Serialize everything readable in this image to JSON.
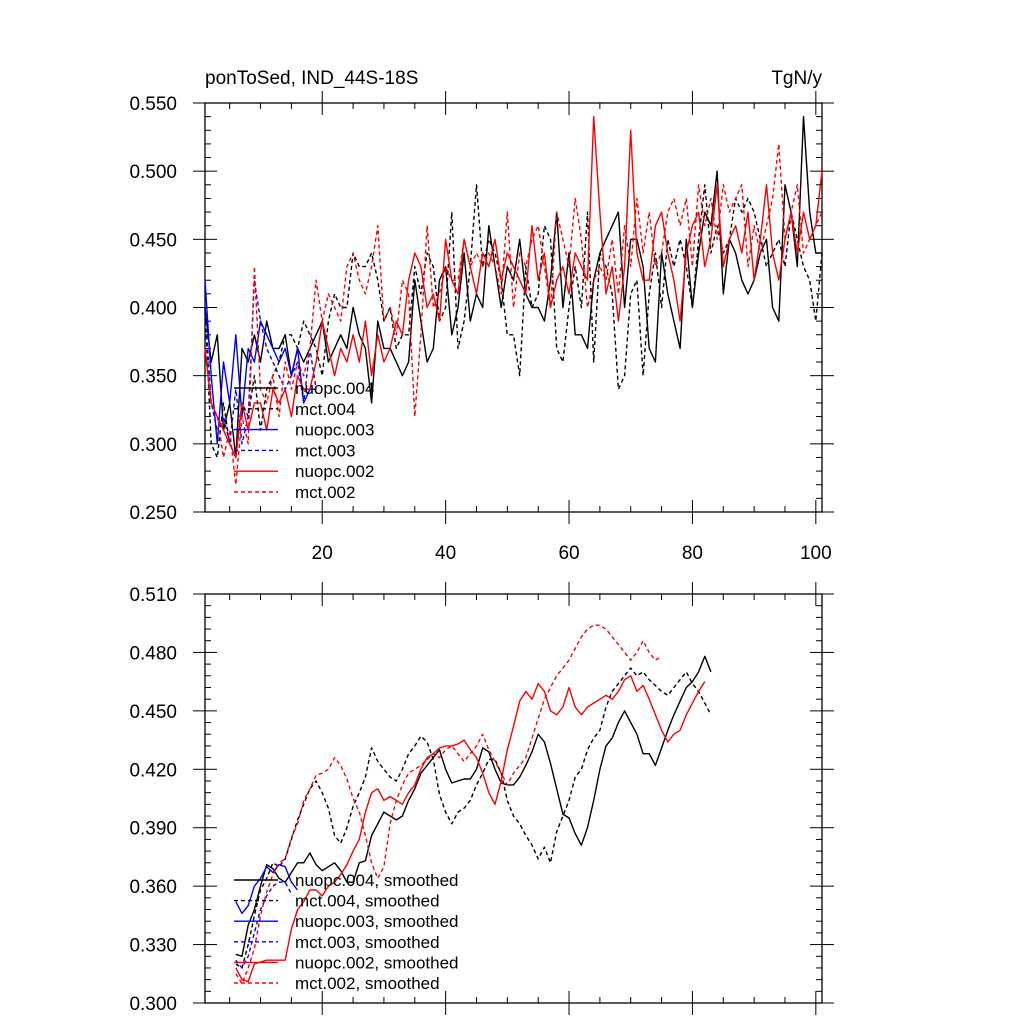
{
  "chart_data": [
    {
      "type": "line",
      "title": "ponToSed, IND_44S-18S",
      "units": "TgN/y",
      "xlim": [
        1,
        101
      ],
      "ylim": [
        0.25,
        0.55
      ],
      "xticks": [
        20,
        40,
        60,
        80,
        100
      ],
      "yticks": [
        0.25,
        0.3,
        0.35,
        0.4,
        0.45,
        0.5,
        0.55
      ],
      "xtick_labels": [
        "20",
        "40",
        "60",
        "80",
        "100"
      ],
      "ytick_labels": [
        "0.250",
        "0.300",
        "0.350",
        "0.400",
        "0.450",
        "0.500",
        "0.550"
      ],
      "legend_position": "bottom-left",
      "series": [
        {
          "name": "nuopc.004",
          "color": "#000000",
          "dash": "solid",
          "x0": 1,
          "values": [
            0.4,
            0.36,
            0.38,
            0.31,
            0.33,
            0.29,
            0.37,
            0.36,
            0.38,
            0.36,
            0.39,
            0.37,
            0.37,
            0.38,
            0.35,
            0.37,
            0.36,
            0.37,
            0.38,
            0.39,
            0.36,
            0.37,
            0.38,
            0.37,
            0.4,
            0.38,
            0.37,
            0.33,
            0.39,
            0.37,
            0.37,
            0.36,
            0.35,
            0.36,
            0.42,
            0.39,
            0.36,
            0.37,
            0.42,
            0.43,
            0.38,
            0.4,
            0.44,
            0.39,
            0.41,
            0.4,
            0.46,
            0.43,
            0.4,
            0.43,
            0.42,
            0.45,
            0.41,
            0.4,
            0.4,
            0.39,
            0.42,
            0.47,
            0.4,
            0.44,
            0.38,
            0.38,
            0.37,
            0.42,
            0.44,
            0.45,
            0.46,
            0.47,
            0.4,
            0.45,
            0.45,
            0.43,
            0.37,
            0.36,
            0.44,
            0.41,
            0.39,
            0.37,
            0.45,
            0.4,
            0.44,
            0.47,
            0.46,
            0.5,
            0.41,
            0.45,
            0.44,
            0.42,
            0.41,
            0.42,
            0.44,
            0.45,
            0.4,
            0.39,
            0.49,
            0.47,
            0.43,
            0.54,
            0.47,
            0.44,
            0.44
          ]
        },
        {
          "name": "mct.004",
          "color": "#000000",
          "dash": "dashed",
          "x0": 1,
          "values": [
            0.4,
            0.3,
            0.29,
            0.33,
            0.3,
            0.29,
            0.33,
            0.32,
            0.35,
            0.31,
            0.34,
            0.35,
            0.36,
            0.38,
            0.38,
            0.37,
            0.39,
            0.38,
            0.37,
            0.35,
            0.39,
            0.41,
            0.4,
            0.4,
            0.44,
            0.43,
            0.43,
            0.44,
            0.42,
            0.39,
            0.4,
            0.37,
            0.38,
            0.38,
            0.43,
            0.41,
            0.44,
            0.43,
            0.39,
            0.4,
            0.47,
            0.37,
            0.39,
            0.43,
            0.49,
            0.43,
            0.45,
            0.44,
            0.42,
            0.38,
            0.38,
            0.35,
            0.43,
            0.4,
            0.41,
            0.46,
            0.45,
            0.37,
            0.36,
            0.4,
            0.43,
            0.4,
            0.47,
            0.36,
            0.44,
            0.43,
            0.41,
            0.34,
            0.35,
            0.41,
            0.42,
            0.35,
            0.41,
            0.44,
            0.4,
            0.45,
            0.43,
            0.45,
            0.43,
            0.4,
            0.45,
            0.49,
            0.44,
            0.46,
            0.44,
            0.45,
            0.48,
            0.47,
            0.48,
            0.47,
            0.45,
            0.43,
            0.44,
            0.45,
            0.43,
            0.47,
            0.45,
            0.43,
            0.42,
            0.39,
            0.44
          ]
        },
        {
          "name": "nuopc.003",
          "color": "#0000ff",
          "dash": "solid",
          "x0": 1,
          "values": [
            0.42,
            0.35,
            0.3,
            0.36,
            0.33,
            0.38,
            0.32,
            0.37,
            0.36,
            0.39,
            0.38,
            0.37,
            0.36,
            0.37,
            0.35,
            0.37,
            0.33,
            0.34,
            0.34
          ]
        },
        {
          "name": "mct.003",
          "color": "#0000ff",
          "dash": "dashed",
          "x0": 1,
          "values": [
            0.4,
            0.33,
            0.31,
            0.32,
            0.3,
            0.34,
            0.3,
            0.32,
            0.42,
            0.39,
            0.37,
            0.36,
            0.35,
            0.34,
            0.35,
            0.36,
            0.33,
            0.37,
            0.34
          ]
        },
        {
          "name": "nuopc.002",
          "color": "#ff0000",
          "dash": "solid",
          "x0": 1,
          "values": [
            0.37,
            0.33,
            0.32,
            0.31,
            0.3,
            0.29,
            0.33,
            0.31,
            0.33,
            0.33,
            0.31,
            0.34,
            0.33,
            0.34,
            0.32,
            0.35,
            0.34,
            0.34,
            0.36,
            0.39,
            0.37,
            0.35,
            0.37,
            0.36,
            0.38,
            0.36,
            0.39,
            0.35,
            0.38,
            0.36,
            0.37,
            0.39,
            0.38,
            0.42,
            0.44,
            0.43,
            0.4,
            0.41,
            0.39,
            0.45,
            0.42,
            0.41,
            0.45,
            0.43,
            0.41,
            0.44,
            0.43,
            0.45,
            0.42,
            0.44,
            0.43,
            0.42,
            0.41,
            0.46,
            0.42,
            0.44,
            0.4,
            0.42,
            0.43,
            0.41,
            0.44,
            0.43,
            0.42,
            0.54,
            0.47,
            0.41,
            0.43,
            0.39,
            0.43,
            0.53,
            0.44,
            0.42,
            0.42,
            0.46,
            0.47,
            0.44,
            0.42,
            0.39,
            0.44,
            0.46,
            0.47,
            0.43,
            0.45,
            0.49,
            0.43,
            0.45,
            0.46,
            0.44,
            0.47,
            0.42,
            0.45,
            0.49,
            0.44,
            0.42,
            0.45,
            0.47,
            0.44,
            0.47,
            0.45,
            0.46,
            0.5
          ]
        },
        {
          "name": "mct.002",
          "color": "#ff0000",
          "dash": "dashed",
          "x0": 1,
          "values": [
            0.37,
            0.33,
            0.32,
            0.29,
            0.31,
            0.27,
            0.32,
            0.3,
            0.43,
            0.34,
            0.33,
            0.35,
            0.32,
            0.36,
            0.34,
            0.36,
            0.35,
            0.37,
            0.42,
            0.39,
            0.41,
            0.4,
            0.39,
            0.43,
            0.44,
            0.42,
            0.41,
            0.43,
            0.46,
            0.39,
            0.4,
            0.38,
            0.42,
            0.41,
            0.32,
            0.38,
            0.46,
            0.4,
            0.41,
            0.43,
            0.42,
            0.42,
            0.45,
            0.43,
            0.44,
            0.43,
            0.44,
            0.43,
            0.41,
            0.47,
            0.4,
            0.44,
            0.43,
            0.45,
            0.46,
            0.43,
            0.4,
            0.47,
            0.45,
            0.43,
            0.48,
            0.45,
            0.4,
            0.42,
            0.43,
            0.42,
            0.45,
            0.41,
            0.46,
            0.43,
            0.48,
            0.44,
            0.47,
            0.43,
            0.44,
            0.47,
            0.48,
            0.46,
            0.48,
            0.43,
            0.49,
            0.46,
            0.48,
            0.45,
            0.49,
            0.47,
            0.48,
            0.49,
            0.43,
            0.46,
            0.44,
            0.46,
            0.48,
            0.52,
            0.45,
            0.47,
            0.49,
            0.44,
            0.45,
            0.46,
            0.47
          ]
        }
      ]
    },
    {
      "type": "line",
      "title": "",
      "xlim": [
        1,
        101
      ],
      "ylim": [
        0.3,
        0.51
      ],
      "xticks": [
        20,
        40,
        60,
        80,
        100
      ],
      "yticks": [
        0.3,
        0.33,
        0.36,
        0.39,
        0.42,
        0.45,
        0.48,
        0.51
      ],
      "ytick_labels": [
        "0.300",
        "0.330",
        "0.360",
        "0.390",
        "0.420",
        "0.450",
        "0.480",
        "0.510"
      ],
      "legend_position": "bottom-left",
      "series": [
        {
          "name": "nuopc.004, smoothed",
          "color": "#000000",
          "dash": "solid",
          "x0": 6,
          "values": [
            0.325,
            0.324,
            0.34,
            0.348,
            0.36,
            0.371,
            0.369,
            0.364,
            0.362,
            0.367,
            0.372,
            0.372,
            0.377,
            0.371,
            0.368,
            0.37,
            0.372,
            0.368,
            0.362,
            0.362,
            0.372,
            0.373,
            0.386,
            0.392,
            0.398,
            0.396,
            0.394,
            0.396,
            0.404,
            0.41,
            0.418,
            0.422,
            0.426,
            0.43,
            0.42,
            0.413,
            0.414,
            0.415,
            0.415,
            0.42,
            0.431,
            0.429,
            0.42,
            0.413,
            0.412,
            0.412,
            0.416,
            0.422,
            0.429,
            0.438,
            0.434,
            0.423,
            0.41,
            0.397,
            0.395,
            0.387,
            0.381,
            0.39,
            0.404,
            0.42,
            0.432,
            0.436,
            0.444,
            0.45,
            0.444,
            0.438,
            0.428,
            0.428,
            0.422,
            0.431,
            0.44,
            0.448,
            0.455,
            0.462,
            0.465,
            0.47,
            0.478,
            0.47
          ]
        },
        {
          "name": "mct.004, smoothed",
          "color": "#000000",
          "dash": "dashed",
          "x0": 6,
          "values": [
            0.32,
            0.318,
            0.33,
            0.345,
            0.358,
            0.364,
            0.372,
            0.37,
            0.374,
            0.384,
            0.394,
            0.402,
            0.41,
            0.414,
            0.408,
            0.4,
            0.386,
            0.382,
            0.39,
            0.401,
            0.408,
            0.416,
            0.431,
            0.424,
            0.42,
            0.416,
            0.414,
            0.42,
            0.428,
            0.432,
            0.437,
            0.434,
            0.425,
            0.407,
            0.398,
            0.392,
            0.398,
            0.4,
            0.404,
            0.412,
            0.418,
            0.425,
            0.425,
            0.418,
            0.404,
            0.396,
            0.392,
            0.386,
            0.381,
            0.374,
            0.38,
            0.372,
            0.388,
            0.396,
            0.404,
            0.416,
            0.42,
            0.43,
            0.436,
            0.44,
            0.452,
            0.46,
            0.464,
            0.468,
            0.472,
            0.468,
            0.47,
            0.466,
            0.463,
            0.46,
            0.458,
            0.462,
            0.466,
            0.47,
            0.464,
            0.46,
            0.454,
            0.448
          ]
        },
        {
          "name": "nuopc.003, smoothed",
          "color": "#0000ff",
          "dash": "solid",
          "x0": 6,
          "values": [
            0.352,
            0.346,
            0.35,
            0.36,
            0.364,
            0.37,
            0.367,
            0.371,
            0.37,
            0.362,
            0.358
          ]
        },
        {
          "name": "mct.003, smoothed",
          "color": "#0000ff",
          "dash": "dashed",
          "x0": 6,
          "values": [
            0.322,
            0.318,
            0.324,
            0.336,
            0.348,
            0.355,
            0.36,
            0.362,
            0.362,
            0.356
          ]
        },
        {
          "name": "nuopc.002, smoothed",
          "color": "#ff0000",
          "dash": "solid",
          "x0": 6,
          "values": [
            0.318,
            0.312,
            0.311,
            0.32,
            0.321,
            0.322,
            0.322,
            0.322,
            0.322,
            0.338,
            0.348,
            0.352,
            0.358,
            0.358,
            0.355,
            0.36,
            0.362,
            0.366,
            0.371,
            0.378,
            0.384,
            0.398,
            0.408,
            0.41,
            0.404,
            0.406,
            0.404,
            0.402,
            0.408,
            0.412,
            0.42,
            0.426,
            0.428,
            0.431,
            0.432,
            0.432,
            0.433,
            0.435,
            0.43,
            0.426,
            0.418,
            0.408,
            0.402,
            0.414,
            0.43,
            0.442,
            0.455,
            0.46,
            0.456,
            0.464,
            0.46,
            0.45,
            0.448,
            0.452,
            0.462,
            0.452,
            0.448,
            0.452,
            0.454,
            0.456,
            0.458,
            0.456,
            0.46,
            0.466,
            0.468,
            0.46,
            0.463,
            0.456,
            0.448,
            0.44,
            0.434,
            0.438,
            0.44,
            0.448,
            0.454,
            0.46,
            0.465
          ]
        },
        {
          "name": "mct.002, smoothed",
          "color": "#ff0000",
          "dash": "dashed",
          "x0": 6,
          "values": [
            0.315,
            0.31,
            0.318,
            0.328,
            0.345,
            0.357,
            0.366,
            0.372,
            0.374,
            0.385,
            0.392,
            0.404,
            0.41,
            0.417,
            0.418,
            0.42,
            0.426,
            0.422,
            0.415,
            0.405,
            0.398,
            0.386,
            0.372,
            0.364,
            0.37,
            0.392,
            0.404,
            0.412,
            0.418,
            0.42,
            0.422,
            0.425,
            0.428,
            0.426,
            0.43,
            0.432,
            0.428,
            0.424,
            0.428,
            0.432,
            0.438,
            0.43,
            0.424,
            0.418,
            0.412,
            0.418,
            0.422,
            0.426,
            0.436,
            0.446,
            0.456,
            0.462,
            0.468,
            0.472,
            0.476,
            0.482,
            0.488,
            0.492,
            0.494,
            0.494,
            0.492,
            0.488,
            0.484,
            0.48,
            0.476,
            0.48,
            0.486,
            0.48,
            0.476,
            0.478
          ]
        }
      ]
    }
  ]
}
